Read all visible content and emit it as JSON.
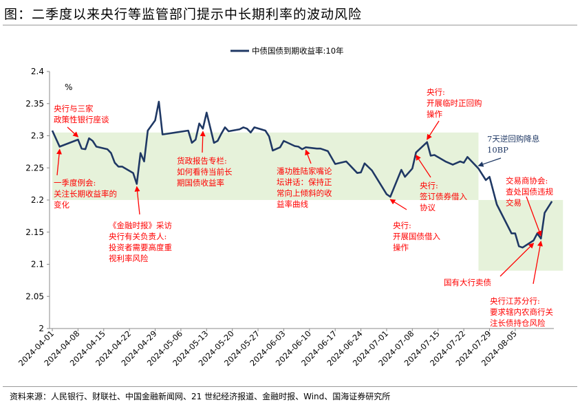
{
  "title": "图：二季度以来央行等监管部门提示中长期利率的波动风险",
  "source": "资料来源：人民银行、财联社、中国金融新闻网、21 世纪经济报道、金融时报、Wind、国海证券研究所",
  "chart_data": {
    "type": "line",
    "title": "图：二季度以来央行等监管部门提示中长期利率的波动风险",
    "ylabel": "%",
    "ylim": [
      2.0,
      2.4
    ],
    "yticks": [
      "2.4",
      "2.35",
      "2.3",
      "2.25",
      "2.2",
      "2.15",
      "2.1",
      "2.05",
      "2"
    ],
    "ytick_values": [
      2.4,
      2.35,
      2.3,
      2.25,
      2.2,
      2.15,
      2.1,
      2.05,
      2.0
    ],
    "x_origin": "2024-04-01",
    "x_unit": "days since origin",
    "xlim": [
      0,
      136
    ],
    "xticks": [
      "2024-04-01",
      "2024-04-08",
      "2024-04-15",
      "2024-04-22",
      "2024-04-29",
      "2024-05-06",
      "2024-05-13",
      "2024-05-20",
      "2024-05-27",
      "2024-06-03",
      "2024-06-10",
      "2024-06-17",
      "2024-06-24",
      "2024-07-01",
      "2024-07-08",
      "2024-07-15",
      "2024-07-22",
      "2024-07-29",
      "2024-08-05"
    ],
    "legend": {
      "position": "top-center",
      "entries": [
        "中债国债到期收益率:10年"
      ]
    },
    "colors": {
      "series": "#1f3864",
      "annotation": "#ff0000",
      "annotation_alt": "#1f3864",
      "band": "#e6f2da"
    },
    "bands": [
      {
        "x": [
          0,
          116
        ],
        "y": [
          2.2,
          2.305
        ]
      },
      {
        "x": [
          116,
          139
        ],
        "y": [
          2.09,
          2.2
        ]
      }
    ],
    "series": [
      {
        "name": "中债国债到期收益率:10年",
        "points": [
          [
            0,
            2.308
          ],
          [
            2,
            2.283
          ],
          [
            7,
            2.294
          ],
          [
            8,
            2.28
          ],
          [
            9,
            2.279
          ],
          [
            10,
            2.296
          ],
          [
            11,
            2.292
          ],
          [
            12,
            2.283
          ],
          [
            15,
            2.279
          ],
          [
            16,
            2.273
          ],
          [
            17,
            2.258
          ],
          [
            18,
            2.252
          ],
          [
            19,
            2.252
          ],
          [
            22,
            2.242
          ],
          [
            23,
            2.225
          ],
          [
            24,
            2.273
          ],
          [
            25,
            2.26
          ],
          [
            26,
            2.308
          ],
          [
            28,
            2.324
          ],
          [
            29,
            2.353
          ],
          [
            30,
            2.302
          ],
          [
            37,
            2.308
          ],
          [
            38,
            2.289
          ],
          [
            39,
            2.294
          ],
          [
            40,
            2.319
          ],
          [
            41,
            2.311
          ],
          [
            42,
            2.336
          ],
          [
            44,
            2.289
          ],
          [
            45,
            2.292
          ],
          [
            46,
            2.303
          ],
          [
            47,
            2.313
          ],
          [
            48,
            2.307
          ],
          [
            51,
            2.31
          ],
          [
            52,
            2.313
          ],
          [
            53,
            2.311
          ],
          [
            54,
            2.305
          ],
          [
            55,
            2.313
          ],
          [
            58,
            2.308
          ],
          [
            59,
            2.299
          ],
          [
            60,
            2.277
          ],
          [
            62,
            2.282
          ],
          [
            63,
            2.292
          ],
          [
            66,
            2.284
          ],
          [
            67,
            2.283
          ],
          [
            68,
            2.279
          ],
          [
            69,
            2.282
          ],
          [
            72,
            2.28
          ],
          [
            73,
            2.28
          ],
          [
            75,
            2.276
          ],
          [
            77,
            2.256
          ],
          [
            80,
            2.26
          ],
          [
            83,
            2.242
          ],
          [
            84,
            2.243
          ],
          [
            85,
            2.257
          ],
          [
            87,
            2.246
          ],
          [
            91,
            2.209
          ],
          [
            92,
            2.205
          ],
          [
            95,
            2.247
          ],
          [
            96,
            2.236
          ],
          [
            98,
            2.249
          ],
          [
            99,
            2.274
          ],
          [
            102,
            2.29
          ],
          [
            103,
            2.269
          ],
          [
            104,
            2.27
          ],
          [
            107,
            2.26
          ],
          [
            109,
            2.255
          ],
          [
            111,
            2.26
          ],
          [
            112,
            2.258
          ],
          [
            113,
            2.267
          ],
          [
            116,
            2.249
          ],
          [
            118,
            2.231
          ],
          [
            119,
            2.236
          ],
          [
            121,
            2.193
          ],
          [
            125,
            2.148
          ],
          [
            126,
            2.148
          ],
          [
            127,
            2.128
          ],
          [
            128,
            2.126
          ],
          [
            131,
            2.137
          ],
          [
            132,
            2.148
          ],
          [
            133,
            2.14
          ],
          [
            134,
            2.18
          ],
          [
            136,
            2.198
          ]
        ]
      }
    ],
    "annotations": [
      {
        "lines": [
          "央行与三家",
          "政策性银行座谈"
        ],
        "at": [
          7,
          2.294
        ],
        "color": "red"
      },
      {
        "lines": [
          "一季度例会:",
          "关注长期收益率的",
          "变化"
        ],
        "at": [
          2,
          2.283
        ],
        "color": "red"
      },
      {
        "lines": [
          "《金融时报》采访",
          "央行有关负责人:",
          "投资者需要高度重",
          "视利率风险"
        ],
        "at": [
          23,
          2.225
        ],
        "color": "red"
      },
      {
        "lines": [
          "货政报告专栏:",
          "如何看待当前长",
          "期国债收益率"
        ],
        "at": [
          41,
          2.311
        ],
        "color": "red"
      },
      {
        "lines": [
          "潘功胜陆家嘴论",
          "坛讲话：保持正",
          "常向上倾斜的收",
          "益率曲线"
        ],
        "at": [
          69,
          2.282
        ],
        "color": "red"
      },
      {
        "lines": [
          "央行:",
          "开展临时正回购",
          "操作"
        ],
        "at": [
          102,
          2.29
        ],
        "color": "red"
      },
      {
        "lines": [
          "7天逆回购降息",
          "10BP"
        ],
        "at": [
          116,
          2.249
        ],
        "color": "navy"
      },
      {
        "lines": [
          "交易商协会:",
          "查处国债违规",
          "交易"
        ],
        "at": [
          133,
          2.14
        ],
        "color": "red"
      },
      {
        "lines": [
          "央行:",
          "签订债券借入",
          "协议"
        ],
        "at": [
          99,
          2.274
        ],
        "color": "red"
      },
      {
        "lines": [
          "央行:",
          "开展国债借入",
          "操作"
        ],
        "at": [
          92,
          2.205
        ],
        "color": "red"
      },
      {
        "lines": [
          "国有大行卖债"
        ],
        "at": [
          131,
          2.137
        ],
        "color": "red"
      },
      {
        "lines": [
          "央行江苏分行:",
          "要求辖内农商行关",
          "注长债持仓风险"
        ],
        "at": [
          133,
          2.14
        ],
        "color": "red"
      }
    ]
  }
}
